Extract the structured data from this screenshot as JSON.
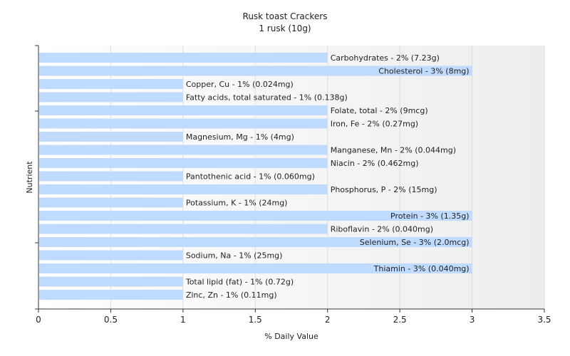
{
  "chart_data": {
    "type": "bar",
    "orientation": "horizontal",
    "title": "Rusk toast Crackers",
    "subtitle": "1 rusk (10g)",
    "xlabel": "% Daily Value",
    "ylabel": "Nutrient",
    "xlim": [
      0,
      3.5
    ],
    "xticks": [
      "0",
      "0.5",
      "1",
      "1.5",
      "2",
      "2.5",
      "3",
      "3.5"
    ],
    "grid": true,
    "bar_color": "#bfdbff",
    "categories": [
      "Carbohydrates",
      "Cholesterol",
      "Copper, Cu",
      "Fatty acids, total saturated",
      "Folate, total",
      "Iron, Fe",
      "Magnesium, Mg",
      "Manganese, Mn",
      "Niacin",
      "Pantothenic acid",
      "Phosphorus, P",
      "Potassium, K",
      "Protein",
      "Riboflavin",
      "Selenium, Se",
      "Sodium, Na",
      "Thiamin",
      "Total lipid (fat)",
      "Zinc, Zn"
    ],
    "values": [
      2,
      3,
      1,
      1,
      2,
      2,
      1,
      2,
      2,
      1,
      2,
      1,
      3,
      2,
      3,
      1,
      3,
      1,
      1
    ],
    "labels": [
      "Carbohydrates - 2% (7.23g)",
      "Cholesterol - 3% (8mg)",
      "Copper, Cu - 1% (0.024mg)",
      "Fatty acids, total saturated - 1% (0.138g)",
      "Folate, total - 2% (9mcg)",
      "Iron, Fe - 2% (0.27mg)",
      "Magnesium, Mg - 1% (4mg)",
      "Manganese, Mn - 2% (0.044mg)",
      "Niacin - 2% (0.462mg)",
      "Pantothenic acid - 1% (0.060mg)",
      "Phosphorus, P - 2% (15mg)",
      "Potassium, K - 1% (24mg)",
      "Protein - 3% (1.35g)",
      "Riboflavin - 2% (0.040mg)",
      "Selenium, Se - 3% (2.0mcg)",
      "Sodium, Na - 1% (25mg)",
      "Thiamin - 3% (0.040mg)",
      "Total lipid (fat) - 1% (0.72g)",
      "Zinc, Zn - 1% (0.11mg)"
    ]
  }
}
